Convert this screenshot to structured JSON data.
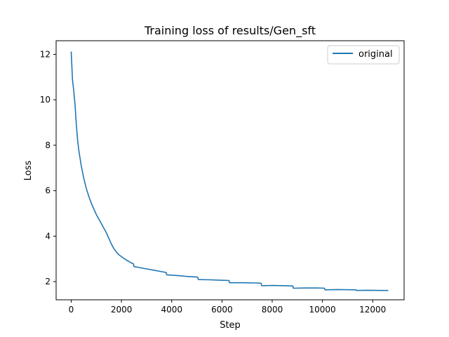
{
  "chart_data": {
    "type": "line",
    "title": "Training loss of results/Gen_sft",
    "xlabel": "Step",
    "ylabel": "Loss",
    "xlim": [
      -600,
      13250
    ],
    "ylim": [
      1.2,
      12.6
    ],
    "xticks": [
      0,
      2000,
      4000,
      6000,
      8000,
      10000,
      12000
    ],
    "yticks": [
      2,
      4,
      6,
      8,
      10,
      12
    ],
    "xtick_labels": [
      "0",
      "2000",
      "4000",
      "6000",
      "8000",
      "10000",
      "12000"
    ],
    "ytick_labels": [
      "2",
      "4",
      "6",
      "8",
      "10",
      "12"
    ],
    "grid": false,
    "legend_position": "top-right",
    "series": [
      {
        "name": "original",
        "color": "#1f77b4",
        "points": [
          [
            0,
            12.1
          ],
          [
            50,
            10.9
          ],
          [
            100,
            10.4
          ],
          [
            150,
            9.8
          ],
          [
            200,
            9.0
          ],
          [
            250,
            8.3
          ],
          [
            300,
            7.8
          ],
          [
            400,
            7.1
          ],
          [
            500,
            6.55
          ],
          [
            600,
            6.1
          ],
          [
            700,
            5.75
          ],
          [
            800,
            5.45
          ],
          [
            900,
            5.2
          ],
          [
            1000,
            4.95
          ],
          [
            1100,
            4.75
          ],
          [
            1200,
            4.55
          ],
          [
            1300,
            4.35
          ],
          [
            1400,
            4.15
          ],
          [
            1500,
            3.9
          ],
          [
            1600,
            3.65
          ],
          [
            1700,
            3.45
          ],
          [
            1800,
            3.3
          ],
          [
            1900,
            3.18
          ],
          [
            2000,
            3.1
          ],
          [
            2100,
            3.02
          ],
          [
            2200,
            2.95
          ],
          [
            2300,
            2.88
          ],
          [
            2400,
            2.82
          ],
          [
            2480,
            2.78
          ],
          [
            2500,
            2.66
          ],
          [
            2700,
            2.62
          ],
          [
            3000,
            2.56
          ],
          [
            3300,
            2.5
          ],
          [
            3600,
            2.44
          ],
          [
            3780,
            2.4
          ],
          [
            3800,
            2.3
          ],
          [
            4200,
            2.27
          ],
          [
            4600,
            2.23
          ],
          [
            5000,
            2.2
          ],
          [
            5040,
            2.19
          ],
          [
            5060,
            2.09
          ],
          [
            5500,
            2.08
          ],
          [
            6000,
            2.06
          ],
          [
            6280,
            2.05
          ],
          [
            6300,
            1.95
          ],
          [
            6800,
            1.95
          ],
          [
            7300,
            1.94
          ],
          [
            7560,
            1.93
          ],
          [
            7580,
            1.82
          ],
          [
            8000,
            1.83
          ],
          [
            8500,
            1.82
          ],
          [
            8820,
            1.81
          ],
          [
            8840,
            1.71
          ],
          [
            9300,
            1.72
          ],
          [
            9800,
            1.72
          ],
          [
            10080,
            1.71
          ],
          [
            10100,
            1.64
          ],
          [
            10600,
            1.65
          ],
          [
            11340,
            1.64
          ],
          [
            11360,
            1.61
          ],
          [
            11800,
            1.62
          ],
          [
            12300,
            1.61
          ],
          [
            12600,
            1.61
          ]
        ]
      }
    ]
  }
}
